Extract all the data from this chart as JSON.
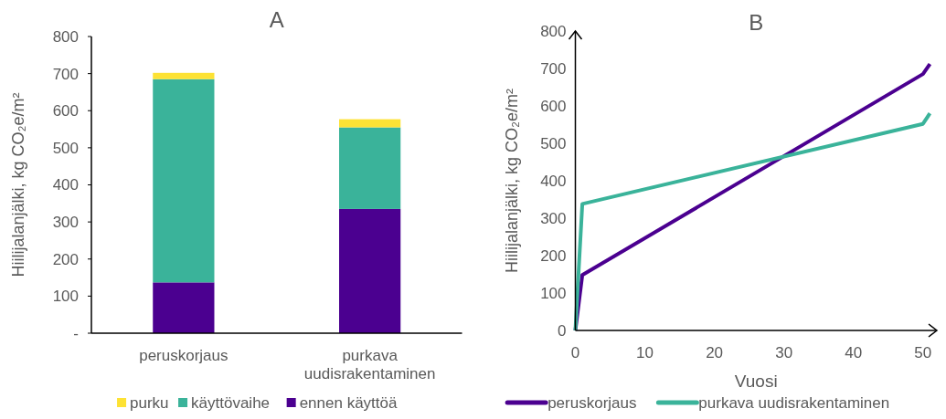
{
  "chart_data": [
    {
      "type": "bar",
      "title": "A",
      "ylabel": "Hiilijalanjälki, kg CO₂e/m²",
      "categories": [
        "peruskorjaus",
        "purkava uudisrakentaminen"
      ],
      "stacked": true,
      "series": [
        {
          "name": "ennen käyttöä",
          "color": "#4b0090",
          "values": [
            137,
            335
          ]
        },
        {
          "name": "käyttövaihe",
          "color": "#3ab39a",
          "values": [
            548,
            220
          ]
        },
        {
          "name": "purku",
          "color": "#fde234",
          "values": [
            17,
            22
          ]
        }
      ],
      "ylim": [
        0,
        800
      ],
      "yticks": [
        {
          "value": 0,
          "label": "-"
        },
        100,
        200,
        300,
        400,
        500,
        600,
        700,
        800
      ],
      "legend": "bottom"
    },
    {
      "type": "line",
      "title": "B",
      "xlabel": "Vuosi",
      "ylabel": "Hiilijalanjälki, kg CO₂e/m²",
      "series": [
        {
          "name": "peruskorjaus",
          "color": "#4b0090",
          "x": [
            0,
            1,
            50,
            51
          ],
          "values": [
            0,
            148,
            685,
            712
          ]
        },
        {
          "name": "purkava uudisrakentaminen",
          "color": "#3ab39a",
          "x": [
            0,
            1,
            50,
            51
          ],
          "values": [
            0,
            338,
            552,
            580
          ]
        }
      ],
      "xlim": [
        0,
        52
      ],
      "xticks": [
        0,
        10,
        20,
        30,
        40,
        50
      ],
      "ylim": [
        0,
        800
      ],
      "yticks": [
        0,
        100,
        200,
        300,
        400,
        500,
        600,
        700,
        800
      ],
      "legend": "bottom"
    }
  ]
}
